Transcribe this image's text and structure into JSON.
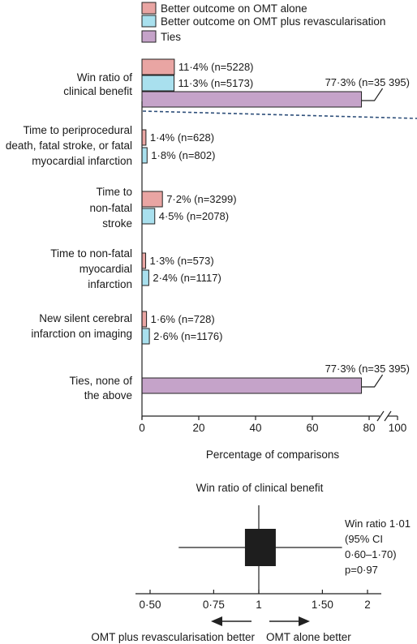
{
  "colors": {
    "omt_alone": "#e9a5a3",
    "omt_plus_revasc": "#a9e0ee",
    "ties": "#c5a3c9",
    "dashed_separator": "#2e4f7a",
    "forest_box": "#1e1e1e"
  },
  "chart_data": [
    {
      "type": "bar",
      "orientation": "horizontal",
      "legend": {
        "position": "top-left",
        "entries": [
          {
            "key": "omt_alone",
            "label": "Better outcome on OMT alone"
          },
          {
            "key": "omt_plus_revasc",
            "label": "Better outcome on OMT plus revascularisation"
          },
          {
            "key": "ties",
            "label": "Ties"
          }
        ]
      },
      "categories": [
        {
          "label_lines": [
            "Win ratio of",
            "clinical benefit"
          ],
          "bars": [
            {
              "series": "omt_alone",
              "value": 11.4,
              "label": "11·4% (n=5228)"
            },
            {
              "series": "omt_plus_revasc",
              "value": 11.3,
              "label": "11·3% (n=5173)"
            },
            {
              "series": "ties",
              "value": 77.3,
              "label": "77·3% (n=35 395)"
            }
          ]
        },
        {
          "label_lines": [
            "Time to periprocedural",
            "death, fatal stroke, or fatal",
            "myocardial infarction"
          ],
          "bars": [
            {
              "series": "omt_alone",
              "value": 1.4,
              "label": "1·4% (n=628)"
            },
            {
              "series": "omt_plus_revasc",
              "value": 1.8,
              "label": "1·8% (n=802)"
            }
          ]
        },
        {
          "label_lines": [
            "Time to",
            "non-fatal",
            "stroke"
          ],
          "bars": [
            {
              "series": "omt_alone",
              "value": 7.2,
              "label": "7·2% (n=3299)"
            },
            {
              "series": "omt_plus_revasc",
              "value": 4.5,
              "label": "4·5% (n=2078)"
            }
          ]
        },
        {
          "label_lines": [
            "Time to non-fatal",
            "myocardial",
            "infarction"
          ],
          "bars": [
            {
              "series": "omt_alone",
              "value": 1.3,
              "label": "1·3% (n=573)"
            },
            {
              "series": "omt_plus_revasc",
              "value": 2.4,
              "label": "2·4% (n=1117)"
            }
          ]
        },
        {
          "label_lines": [
            "New silent cerebral",
            "infarction on imaging"
          ],
          "bars": [
            {
              "series": "omt_alone",
              "value": 1.6,
              "label": "1·6% (n=728)"
            },
            {
              "series": "omt_plus_revasc",
              "value": 2.6,
              "label": "2·6% (n=1176)"
            }
          ]
        },
        {
          "label_lines": [
            "Ties, none of",
            "the above"
          ],
          "bars": [
            {
              "series": "ties",
              "value": 77.3,
              "label": "77·3% (n=35 395)"
            }
          ]
        }
      ],
      "x_axis": {
        "label": "Percentage of comparisons",
        "ticks": [
          "0",
          "20",
          "40",
          "60",
          "80",
          "100"
        ],
        "axis_break": "between 80 and 100",
        "xlim": [
          0,
          100
        ]
      },
      "grid": false
    },
    {
      "type": "forest",
      "title": "Win ratio of clinical benefit",
      "estimate": 1.01,
      "ci": [
        0.6,
        1.7
      ],
      "p": 0.97,
      "annotation_lines": [
        "Win ratio 1·01",
        "(95% CI",
        "0·60–1·70)",
        "p=0·97"
      ],
      "x_scale": "log",
      "ticks": [
        {
          "value": 0.5,
          "label": "0·50"
        },
        {
          "value": 0.75,
          "label": "0·75"
        },
        {
          "value": 1,
          "label": "1"
        },
        {
          "value": 1.5,
          "label": "1·50"
        },
        {
          "value": 2,
          "label": "2"
        }
      ],
      "direction_labels": {
        "left": "OMT plus revascularisation better",
        "right": "OMT alone better"
      }
    }
  ]
}
